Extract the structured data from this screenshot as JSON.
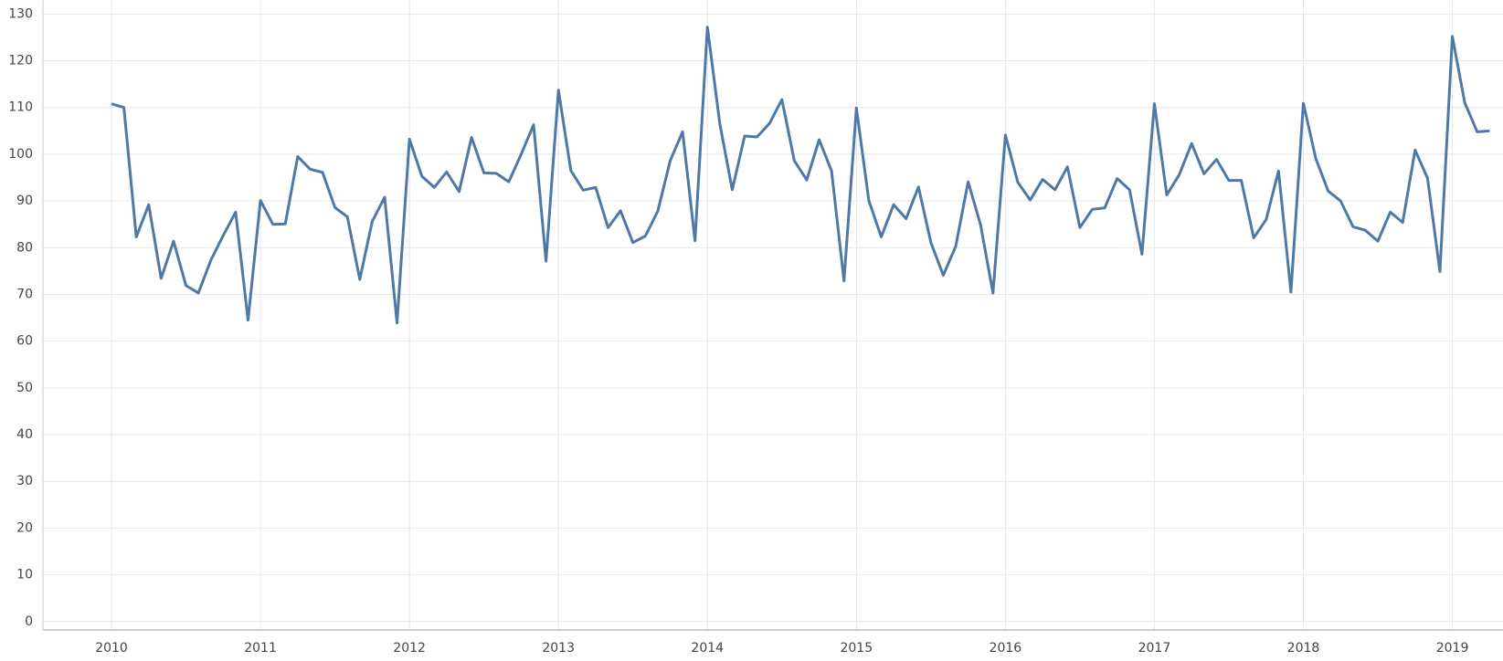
{
  "chart_data": {
    "type": "line",
    "x": [
      "2010-01",
      "2010-02",
      "2010-03",
      "2010-04",
      "2010-05",
      "2010-06",
      "2010-07",
      "2010-08",
      "2010-09",
      "2010-10",
      "2010-11",
      "2010-12",
      "2011-01",
      "2011-02",
      "2011-03",
      "2011-04",
      "2011-05",
      "2011-06",
      "2011-07",
      "2011-08",
      "2011-09",
      "2011-10",
      "2011-11",
      "2011-12",
      "2012-01",
      "2012-02",
      "2012-03",
      "2012-04",
      "2012-05",
      "2012-06",
      "2012-07",
      "2012-08",
      "2012-09",
      "2012-10",
      "2012-11",
      "2012-12",
      "2013-01",
      "2013-02",
      "2013-03",
      "2013-04",
      "2013-05",
      "2013-06",
      "2013-07",
      "2013-08",
      "2013-09",
      "2013-10",
      "2013-11",
      "2013-12",
      "2014-01",
      "2014-02",
      "2014-03",
      "2014-04",
      "2014-05",
      "2014-06",
      "2014-07",
      "2014-08",
      "2014-09",
      "2014-10",
      "2014-11",
      "2014-12",
      "2015-01",
      "2015-02",
      "2015-03",
      "2015-04",
      "2015-05",
      "2015-06",
      "2015-07",
      "2015-08",
      "2015-09",
      "2015-10",
      "2015-11",
      "2015-12",
      "2016-01",
      "2016-02",
      "2016-03",
      "2016-04",
      "2016-05",
      "2016-06",
      "2016-07",
      "2016-08",
      "2016-09",
      "2016-10",
      "2016-11",
      "2016-12",
      "2017-01",
      "2017-02",
      "2017-03",
      "2017-04",
      "2017-05",
      "2017-06",
      "2017-07",
      "2017-08",
      "2017-09",
      "2017-10",
      "2017-11",
      "2017-12",
      "2018-01",
      "2018-02",
      "2018-03",
      "2018-04",
      "2018-05",
      "2018-06",
      "2018-07",
      "2018-08",
      "2018-09",
      "2018-10",
      "2018-11",
      "2018-12",
      "2019-01",
      "2019-02",
      "2019-03",
      "2019-04"
    ],
    "series": [
      {
        "color": "#4e79a7",
        "values": [
          110.8,
          110.0,
          82.3,
          89.2,
          73.4,
          81.4,
          71.9,
          70.3,
          77.3,
          82.6,
          87.6,
          64.5,
          90.1,
          85.0,
          85.1,
          99.5,
          96.8,
          96.1,
          88.6,
          86.6,
          73.2,
          85.6,
          90.8,
          63.9,
          103.2,
          95.3,
          92.9,
          96.2,
          92.0,
          103.6,
          96.0,
          95.9,
          94.1,
          100.0,
          106.3,
          77.1,
          113.7,
          96.5,
          92.3,
          92.9,
          84.3,
          87.9,
          81.1,
          82.5,
          87.8,
          98.6,
          104.8,
          81.5,
          127.2,
          106.5,
          92.4,
          103.9,
          103.7,
          106.6,
          111.7,
          98.6,
          94.5,
          103.1,
          96.4,
          72.9,
          109.9,
          90.1,
          82.3,
          89.2,
          86.2,
          93.0,
          81.1,
          74.1,
          80.3,
          94.1,
          84.9,
          70.3,
          104.1,
          94.0,
          90.2,
          94.6,
          92.4,
          97.3,
          84.3,
          88.2,
          88.5,
          94.8,
          92.4,
          78.6,
          110.8,
          91.3,
          95.6,
          102.3,
          95.8,
          98.9,
          94.4,
          94.4,
          82.1,
          86.0,
          96.4,
          70.5,
          110.9,
          99.1,
          92.1,
          90.0,
          84.5,
          83.7,
          81.4,
          87.6,
          85.4,
          100.9,
          94.9,
          74.9,
          125.2,
          111.0,
          104.8,
          105.0
        ]
      }
    ],
    "xlim": [
      2009.54,
      2019.34
    ],
    "xticks": [
      2010,
      2011,
      2012,
      2013,
      2014,
      2015,
      2016,
      2017,
      2018,
      2019
    ],
    "ylim": [
      -1.8,
      133
    ],
    "yticks": [
      0,
      10,
      20,
      30,
      40,
      50,
      60,
      70,
      80,
      90,
      100,
      110,
      120,
      130
    ],
    "grid": true
  }
}
